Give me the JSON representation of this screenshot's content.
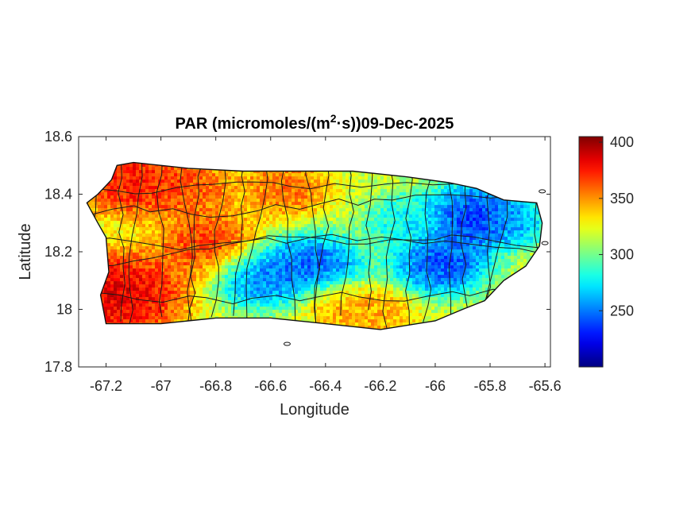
{
  "chart_data": {
    "type": "heatmap",
    "title": {
      "prefix": "PAR (micromoles/(m",
      "superscript": "2",
      "suffix": "·s))09-Dec-2025"
    },
    "xlabel": "Longitude",
    "ylabel": "Latitude",
    "xlim": [
      -67.3,
      -65.58
    ],
    "ylim": [
      17.8,
      18.6
    ],
    "xticks": [
      -67.2,
      -67,
      -66.8,
      -66.6,
      -66.4,
      -66.2,
      -66,
      -65.8,
      -65.6
    ],
    "xtick_labels": [
      "-67.2",
      "-67",
      "-66.8",
      "-66.6",
      "-66.4",
      "-66.2",
      "-66",
      "-65.8",
      "-65.6"
    ],
    "yticks": [
      17.8,
      18.0,
      18.2,
      18.4,
      18.6
    ],
    "ytick_labels": [
      "17.8",
      "18",
      "18.2",
      "18.4",
      "18.6"
    ],
    "colorbar": {
      "colormap": "jet",
      "range": [
        200,
        405
      ],
      "ticks": [
        250,
        300,
        350,
        400
      ],
      "tick_labels": [
        "250",
        "300",
        "350",
        "400"
      ]
    },
    "region_outline": [
      [
        -67.27,
        18.37
      ],
      [
        -67.23,
        18.4
      ],
      [
        -67.18,
        18.45
      ],
      [
        -67.16,
        18.5
      ],
      [
        -67.1,
        18.51
      ],
      [
        -66.9,
        18.49
      ],
      [
        -66.7,
        18.48
      ],
      [
        -66.5,
        18.48
      ],
      [
        -66.3,
        18.48
      ],
      [
        -66.1,
        18.46
      ],
      [
        -65.95,
        18.44
      ],
      [
        -65.85,
        18.42
      ],
      [
        -65.75,
        18.38
      ],
      [
        -65.63,
        18.37
      ],
      [
        -65.61,
        18.3
      ],
      [
        -65.62,
        18.22
      ],
      [
        -65.67,
        18.15
      ],
      [
        -65.75,
        18.1
      ],
      [
        -65.82,
        18.03
      ],
      [
        -65.9,
        18.0
      ],
      [
        -66.0,
        17.96
      ],
      [
        -66.2,
        17.93
      ],
      [
        -66.4,
        17.95
      ],
      [
        -66.6,
        17.97
      ],
      [
        -66.8,
        17.97
      ],
      [
        -67.0,
        17.95
      ],
      [
        -67.2,
        17.95
      ],
      [
        -67.22,
        18.05
      ],
      [
        -67.19,
        18.13
      ],
      [
        -67.2,
        18.25
      ],
      [
        -67.23,
        18.3
      ]
    ],
    "islets": [
      {
        "lon": -66.54,
        "lat": 17.88
      },
      {
        "lon": -65.6,
        "lat": 18.23
      },
      {
        "lon": -65.61,
        "lat": 18.41
      }
    ],
    "hot_zones": [
      {
        "lon": -67.15,
        "lat": 18.05,
        "value": 400,
        "spread": 0.13
      },
      {
        "lon": -67.1,
        "lat": 18.45,
        "value": 390,
        "spread": 0.11
      },
      {
        "lon": -66.82,
        "lat": 18.22,
        "value": 380,
        "spread": 0.1
      },
      {
        "lon": -66.9,
        "lat": 18.42,
        "value": 370,
        "spread": 0.09
      },
      {
        "lon": -66.55,
        "lat": 18.42,
        "value": 365,
        "spread": 0.09
      },
      {
        "lon": -66.35,
        "lat": 18.02,
        "value": 355,
        "spread": 0.08
      },
      {
        "lon": -66.2,
        "lat": 17.98,
        "value": 350,
        "spread": 0.07
      }
    ],
    "cool_zones": [
      {
        "lon": -65.85,
        "lat": 18.32,
        "value": 220,
        "spread": 0.1
      },
      {
        "lon": -65.98,
        "lat": 18.16,
        "value": 225,
        "spread": 0.09
      },
      {
        "lon": -66.45,
        "lat": 18.14,
        "value": 230,
        "spread": 0.1
      },
      {
        "lon": -66.65,
        "lat": 18.12,
        "value": 240,
        "spread": 0.09
      },
      {
        "lon": -66.1,
        "lat": 18.3,
        "value": 270,
        "spread": 0.08
      },
      {
        "lon": -65.7,
        "lat": 18.3,
        "value": 260,
        "spread": 0.06
      }
    ],
    "base_value": 315,
    "grid": false
  }
}
